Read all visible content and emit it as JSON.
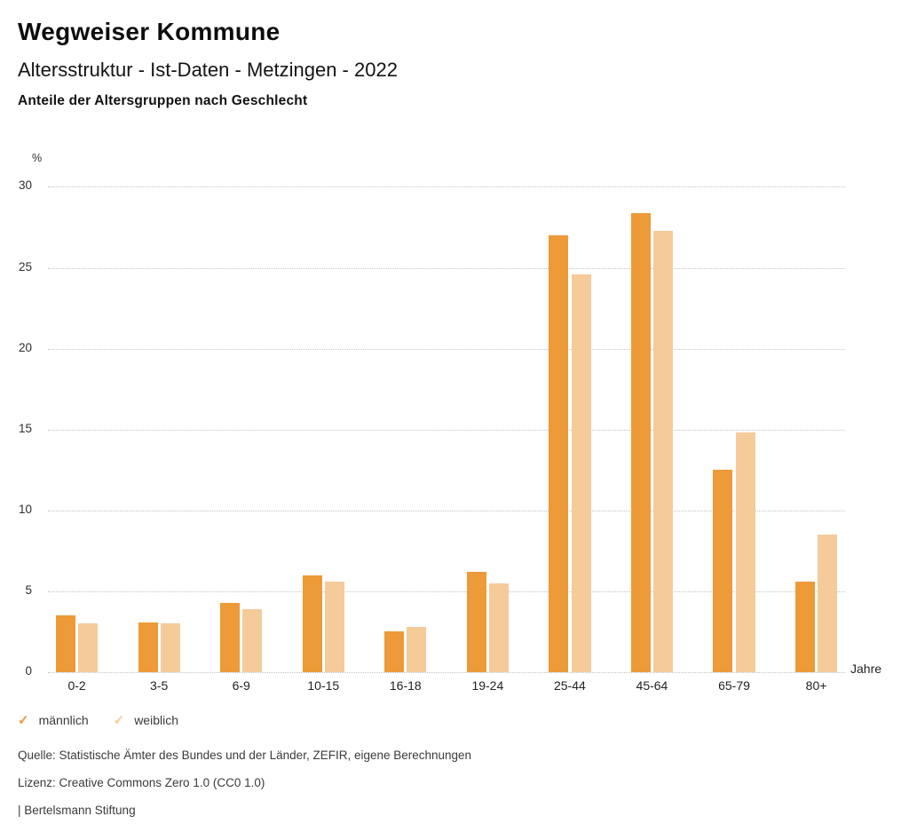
{
  "header": {
    "title": "Wegweiser Kommune",
    "subtitle": "Altersstruktur - Ist-Daten - Metzingen - 2022",
    "heading": "Anteile der Altersgruppen nach Geschlecht"
  },
  "chart_data": {
    "type": "bar",
    "title": "Anteile der Altersgruppen nach Geschlecht",
    "categories": [
      "0-2",
      "3-5",
      "6-9",
      "10-15",
      "16-18",
      "19-24",
      "25-44",
      "45-64",
      "65-79",
      "80+"
    ],
    "series": [
      {
        "name": "männlich",
        "color": "#ED9A39",
        "values": [
          3.5,
          3.1,
          4.3,
          6.0,
          2.5,
          6.2,
          27.0,
          28.4,
          12.5,
          5.6
        ]
      },
      {
        "name": "weiblich",
        "color": "#F5CB9A",
        "values": [
          3.0,
          3.0,
          3.9,
          5.6,
          2.8,
          5.5,
          24.6,
          27.3,
          14.8,
          8.5
        ]
      }
    ],
    "unit_y": "%",
    "unit_x": "Jahre",
    "ylim": [
      0,
      30
    ],
    "yticks": [
      0,
      5,
      10,
      15,
      20,
      25,
      30
    ],
    "grid": "horizontal-dotted",
    "legend_position": "bottom-left"
  },
  "footer": {
    "source": "Quelle: Statistische Ämter des Bundes und der Länder, ZEFIR, eigene Berechnungen",
    "license": "Lizenz: Creative Commons Zero 1.0 (CC0 1.0)",
    "brand": "| Bertelsmann Stiftung"
  }
}
